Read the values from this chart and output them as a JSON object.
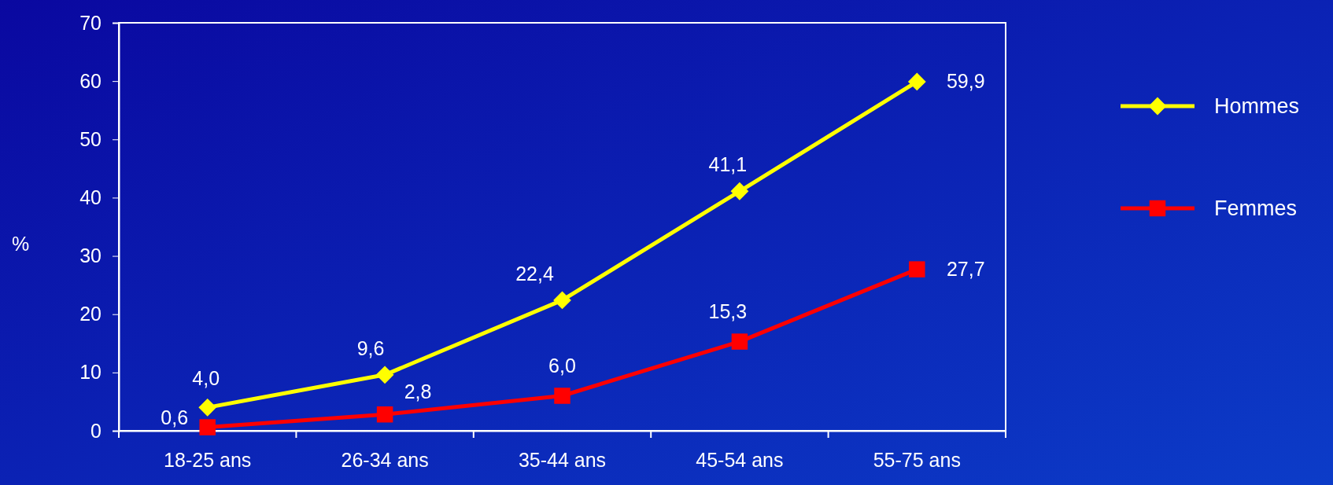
{
  "chart_data": {
    "type": "line",
    "ylabel": "%",
    "categories": [
      "18-25 ans",
      "26-34 ans",
      "35-44 ans",
      "45-54 ans",
      "55-75 ans"
    ],
    "series": [
      {
        "name": "Hommes",
        "color": "#ffff00",
        "marker": "diamond",
        "values": [
          4.0,
          9.6,
          22.4,
          41.1,
          59.9
        ],
        "value_labels": [
          "4,0",
          "9,6",
          "22,4",
          "41,1",
          "59,9"
        ]
      },
      {
        "name": "Femmes",
        "color": "#ff0000",
        "marker": "square",
        "values": [
          0.6,
          2.8,
          6.0,
          15.3,
          27.7
        ],
        "value_labels": [
          "0,6",
          "2,8",
          "6,0",
          "15,3",
          "27,7"
        ]
      }
    ],
    "ylim": [
      0,
      70
    ],
    "yticks": [
      0,
      10,
      20,
      30,
      40,
      50,
      60,
      70
    ],
    "grid": false,
    "legend": "right"
  }
}
